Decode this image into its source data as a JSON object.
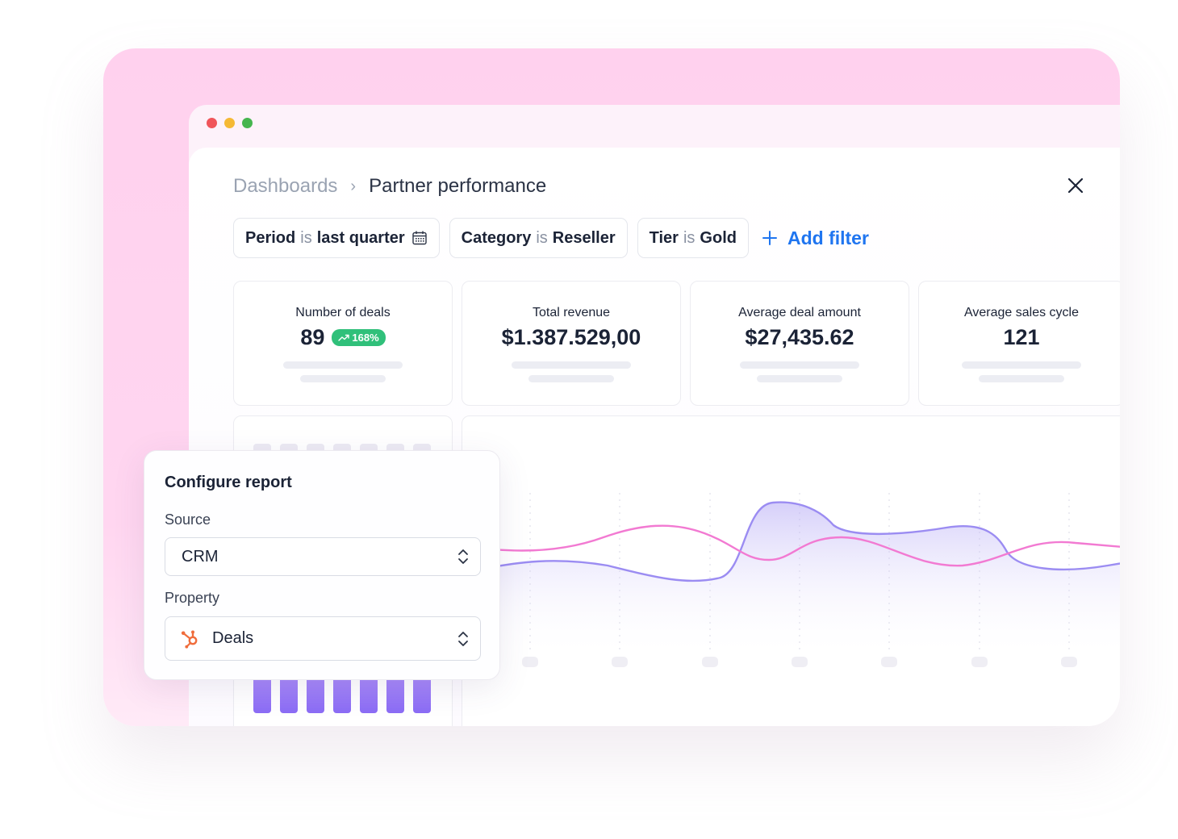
{
  "breadcrumb": {
    "root": "Dashboards",
    "separator": "›",
    "current": "Partner performance"
  },
  "filters": [
    {
      "key": "Period",
      "op": "is",
      "value": "last quarter",
      "icon": "calendar-icon"
    },
    {
      "key": "Category",
      "op": "is",
      "value": "Reseller"
    },
    {
      "key": "Tier",
      "op": "is",
      "value": "Gold"
    }
  ],
  "add_filter_label": "Add filter",
  "kpis": [
    {
      "label": "Number of deals",
      "value": "89",
      "badge": "168%"
    },
    {
      "label": "Total revenue",
      "value": "$1.387.529,00"
    },
    {
      "label": "Average deal amount",
      "value": "$27,435.62"
    },
    {
      "label": "Average sales cycle",
      "value": "121"
    }
  ],
  "config": {
    "title": "Configure report",
    "source_label": "Source",
    "source_value": "CRM",
    "property_label": "Property",
    "property_value": "Deals",
    "property_icon": "hubspot-icon"
  },
  "colors": {
    "accent_blue": "#1f75f0",
    "badge_green": "#30c07a",
    "line_purple": "#9b8cf2",
    "line_pink": "#f27ad2",
    "bar_purple": "#9b7cf7",
    "backdrop_pink": "#ffd1ee"
  }
}
